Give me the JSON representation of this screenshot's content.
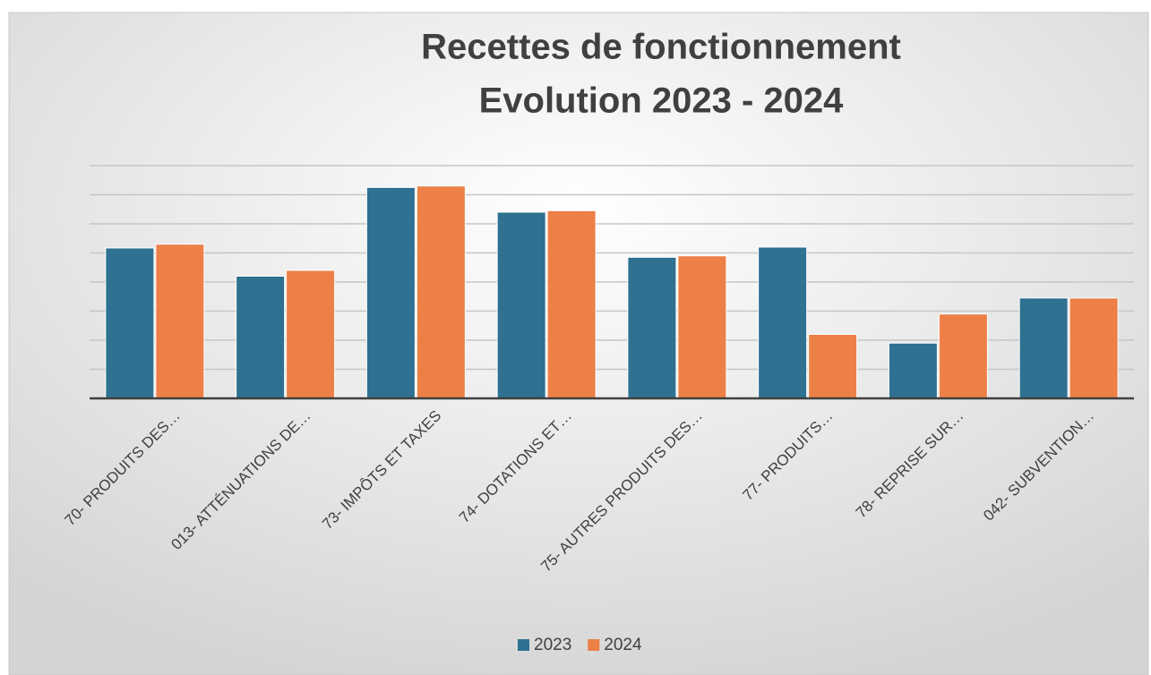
{
  "chart_data": {
    "type": "bar",
    "title": [
      "Recettes de fonctionnement",
      "Evolution 2023 - 2024"
    ],
    "categories": [
      "70- PRODUITS DES…",
      "013- ATTÉNUATIONS DE…",
      "73- IMPÔTS ET TAXES",
      "74- DOTATIONS ET…",
      "75- AUTRES PRODUITS DES…",
      "77- PRODUITS…",
      "78- REPRISE SUR…",
      "042- SUBVENTION…"
    ],
    "series": [
      {
        "name": "2023",
        "color": "#2e7191",
        "values": [
          5.17,
          4.2,
          7.25,
          6.4,
          4.85,
          5.2,
          1.9,
          3.45
        ]
      },
      {
        "name": "2024",
        "color": "#ec8046",
        "values": [
          5.3,
          4.4,
          7.3,
          6.45,
          4.9,
          2.2,
          2.9,
          3.45
        ]
      }
    ],
    "ylim": [
      0,
      8
    ],
    "yticks": [
      0,
      1,
      2,
      3,
      4,
      5,
      6,
      7,
      8
    ],
    "grid": true,
    "legend": "bottom"
  }
}
